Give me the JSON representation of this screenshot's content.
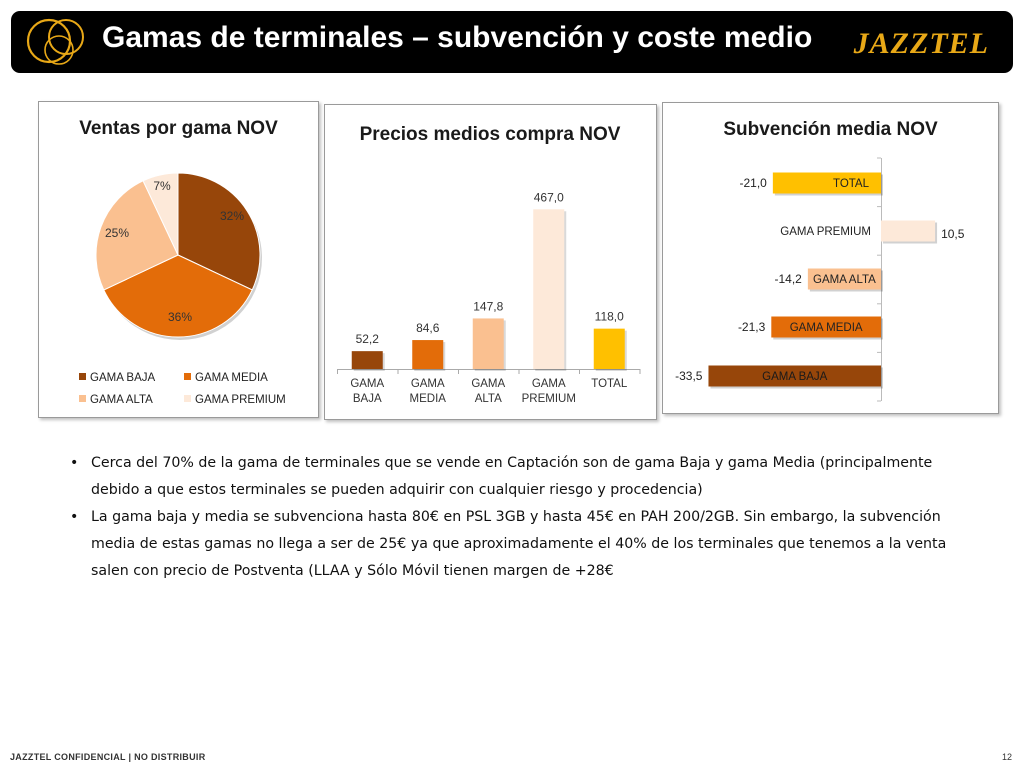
{
  "header": {
    "title": "Gamas de terminales – subvención y coste medio",
    "brand": "JAZZTEL"
  },
  "colors": {
    "baja": "#97460A",
    "media": "#E36C09",
    "alta": "#FAC090",
    "premium": "#FDE9D9",
    "total": "#FFC000",
    "brand": "#E8A817"
  },
  "chart_data": [
    {
      "type": "pie",
      "title": "Ventas por gama NOV",
      "categories": [
        "GAMA BAJA",
        "GAMA MEDIA",
        "GAMA ALTA",
        "GAMA PREMIUM"
      ],
      "values": [
        32,
        36,
        25,
        7
      ],
      "labels": [
        "32%",
        "36%",
        "25%",
        "7%"
      ],
      "colors": [
        "#97460A",
        "#E36C09",
        "#FAC090",
        "#FDE9D9"
      ],
      "legend_position": "bottom"
    },
    {
      "type": "bar",
      "title": "Precios medios compra NOV",
      "categories": [
        "GAMA BAJA",
        "GAMA MEDIA",
        "GAMA ALTA",
        "GAMA PREMIUM",
        "TOTAL"
      ],
      "values": [
        52.2,
        84.6,
        147.8,
        467.0,
        118.0
      ],
      "labels": [
        "52,2",
        "84,6",
        "147,8",
        "467,0",
        "118,0"
      ],
      "colors": [
        "#97460A",
        "#E36C09",
        "#FAC090",
        "#FDE9D9",
        "#FFC000"
      ],
      "ylim": [
        0,
        500
      ]
    },
    {
      "type": "bar",
      "orientation": "horizontal",
      "title": "Subvención media NOV",
      "categories": [
        "TOTAL",
        "GAMA PREMIUM",
        "GAMA ALTA",
        "GAMA MEDIA",
        "GAMA BAJA"
      ],
      "values": [
        -21.0,
        10.5,
        -14.2,
        -21.3,
        -33.5
      ],
      "labels": [
        "-21,0",
        "10,5",
        "-14,2",
        "-21,3",
        "-33,5"
      ],
      "colors": [
        "#FFC000",
        "#FDE9D9",
        "#FAC090",
        "#E36C09",
        "#97460A"
      ],
      "xlim": [
        -35,
        12
      ]
    }
  ],
  "bullets": [
    "Cerca del 70% de la gama de terminales que se vende en Captación son de gama Baja y gama Media (principalmente debido a que estos terminales se pueden adquirir con cualquier riesgo y procedencia)",
    "La gama baja y media se subvenciona hasta 80€ en PSL 3GB y hasta 45€ en PAH 200/2GB. Sin embargo, la subvención media de estas gamas no llega a ser de 25€ ya que aproximadamente el 40% de los terminales que tenemos a la venta salen con precio de Postventa (LLAA y Sólo Móvil tienen margen de +28€"
  ],
  "footer": {
    "left": "JAZZTEL CONFIDENCIAL | NO DISTRIBUIR",
    "page": "12"
  }
}
